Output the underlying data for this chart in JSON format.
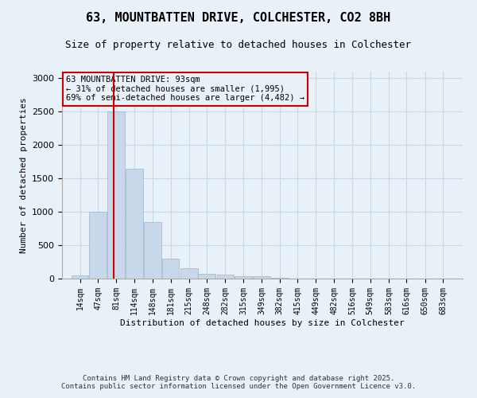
{
  "title": "63, MOUNTBATTEN DRIVE, COLCHESTER, CO2 8BH",
  "subtitle": "Size of property relative to detached houses in Colchester",
  "xlabel": "Distribution of detached houses by size in Colchester",
  "ylabel": "Number of detached properties",
  "footer_line1": "Contains HM Land Registry data © Crown copyright and database right 2025.",
  "footer_line2": "Contains public sector information licensed under the Open Government Licence v3.0.",
  "bar_color": "#c8d8ea",
  "bar_edge_color": "#9ab8cc",
  "grid_color": "#c8d8e4",
  "background_color": "#e8f0f8",
  "annotation_box_color": "#cc0000",
  "property_line_color": "#cc0000",
  "property_sqm": 93,
  "annotation_text": "63 MOUNTBATTEN DRIVE: 93sqm\n← 31% of detached houses are smaller (1,995)\n69% of semi-detached houses are larger (4,482) →",
  "categories": [
    "14sqm",
    "47sqm",
    "81sqm",
    "114sqm",
    "148sqm",
    "181sqm",
    "215sqm",
    "248sqm",
    "282sqm",
    "315sqm",
    "349sqm",
    "382sqm",
    "415sqm",
    "449sqm",
    "482sqm",
    "516sqm",
    "549sqm",
    "583sqm",
    "616sqm",
    "650sqm",
    "683sqm"
  ],
  "bin_edges": [
    14,
    47,
    81,
    114,
    148,
    181,
    215,
    248,
    282,
    315,
    349,
    382,
    415,
    449,
    482,
    516,
    549,
    583,
    616,
    650,
    683,
    716
  ],
  "values": [
    50,
    1000,
    2500,
    1650,
    850,
    300,
    160,
    70,
    55,
    40,
    30,
    12,
    0,
    5,
    0,
    0,
    0,
    0,
    0,
    0,
    0
  ],
  "ylim": [
    0,
    3100
  ],
  "yticks": [
    0,
    500,
    1000,
    1500,
    2000,
    2500,
    3000
  ]
}
